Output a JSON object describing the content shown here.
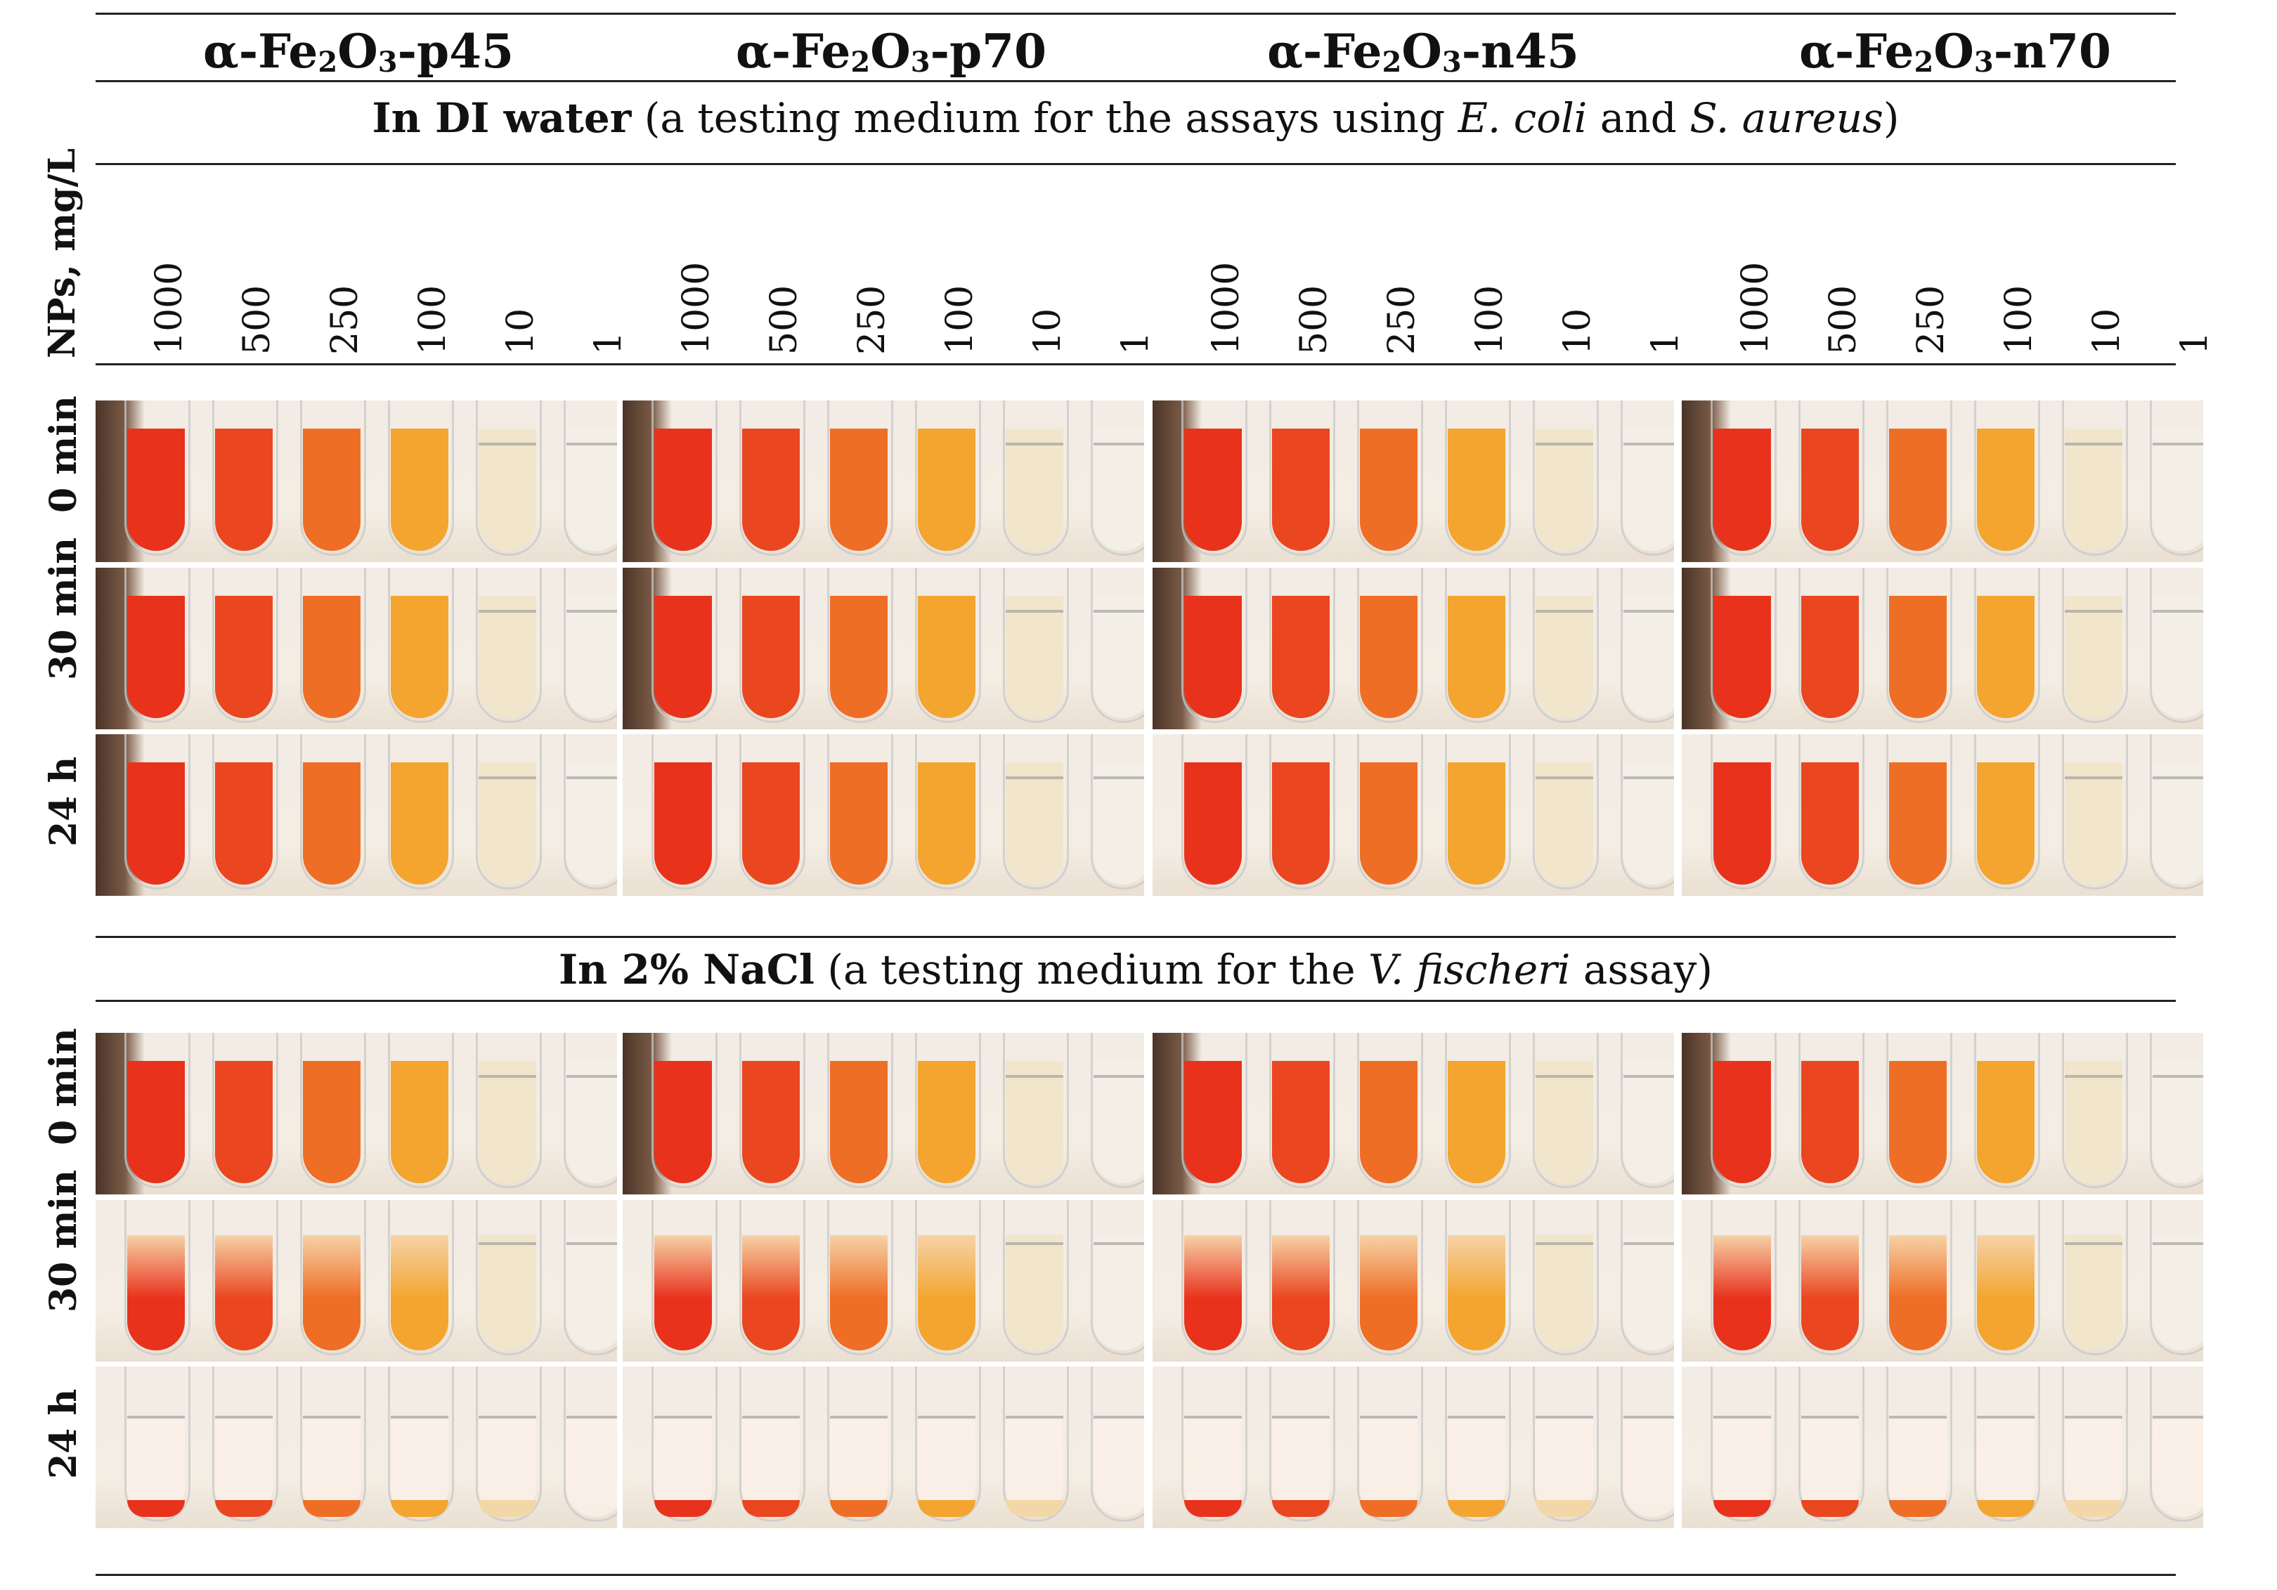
{
  "header": {
    "samples": [
      {
        "prefix": "α-Fe",
        "sub1": "2",
        "mid": "O",
        "sub2": "3",
        "suffix": "-p45"
      },
      {
        "prefix": "α-Fe",
        "sub1": "2",
        "mid": "O",
        "sub2": "3",
        "suffix": "-p70"
      },
      {
        "prefix": "α-Fe",
        "sub1": "2",
        "mid": "O",
        "sub2": "3",
        "suffix": "-n45"
      },
      {
        "prefix": "α-Fe",
        "sub1": "2",
        "mid": "O",
        "sub2": "3",
        "suffix": "-n70"
      }
    ]
  },
  "section1": {
    "bold": "In DI water",
    "text_a": " (a testing medium for the assays using ",
    "italic_a": "E. coli",
    "text_b": " and ",
    "italic_b": "S. aureus",
    "text_c": ")"
  },
  "section2": {
    "bold": "In 2% NaCl",
    "text_a": " (a testing medium for the ",
    "italic_a": "V. fischeri",
    "text_b": " assay)"
  },
  "axis": {
    "conc_label": "NPs, mg/L",
    "concentrations": [
      "1000",
      "500",
      "250",
      "100",
      "10",
      "1"
    ]
  },
  "rows": {
    "di": [
      "0 min",
      "30 min",
      "24 h"
    ],
    "nacl": [
      "0 min",
      "30 min",
      "24 h"
    ]
  },
  "colors": {
    "c1000": "#e8321c",
    "c500": "#ea4620",
    "c250": "#ee6e26",
    "c100": "#f3a530",
    "c10": "#f1e6cc",
    "c1": "#f3efe6",
    "bg": "#f4ede3"
  }
}
